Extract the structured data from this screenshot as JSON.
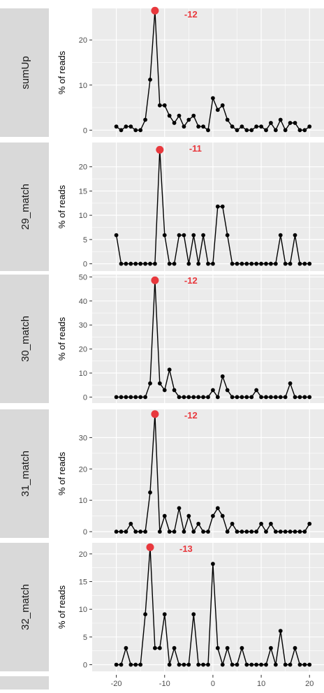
{
  "chart_data": {
    "type": "line",
    "x_ticks": [
      -20,
      -10,
      0,
      10,
      20
    ],
    "xlim": [
      -25,
      23
    ],
    "y_axis_label": "% of reads",
    "colors": {
      "line": "#000000",
      "point": "#000000",
      "peak": "#e8383d",
      "panel_bg": "#ebebeb",
      "strip_bg": "#d9d9d9",
      "grid": "#ffffff"
    },
    "panels": [
      {
        "strip": "sumUp",
        "ylim": [
          -1.5,
          27
        ],
        "y_ticks": [
          0,
          10,
          20
        ],
        "peak": {
          "x": -12,
          "label": "-12"
        },
        "x": [
          -20,
          -19,
          -18,
          -17,
          -16,
          -15,
          -14,
          -13,
          -12,
          -11,
          -10,
          -9,
          -8,
          -7,
          -6,
          -5,
          -4,
          -3,
          -2,
          -1,
          0,
          1,
          2,
          3,
          4,
          5,
          6,
          7,
          8,
          9,
          10,
          11,
          12,
          13,
          14,
          15,
          16,
          17,
          18,
          19,
          20
        ],
        "y": [
          0.8,
          0.0,
          0.8,
          0.8,
          0.0,
          0.0,
          2.3,
          11.2,
          26.5,
          5.5,
          5.5,
          3.2,
          1.6,
          3.2,
          0.8,
          2.3,
          3.2,
          0.8,
          0.8,
          0.0,
          7.1,
          4.5,
          5.5,
          2.3,
          0.8,
          0.0,
          0.8,
          0.0,
          0.0,
          0.8,
          0.8,
          0.0,
          1.6,
          0.0,
          2.3,
          0.0,
          1.6,
          1.6,
          0.0,
          0.0,
          0.8
        ]
      },
      {
        "strip": "29_match",
        "ylim": [
          -1.5,
          25
        ],
        "y_ticks": [
          0,
          5,
          10,
          15,
          20
        ],
        "peak": {
          "x": -11,
          "label": "-11"
        },
        "x": [
          -20,
          -19,
          -18,
          -17,
          -16,
          -15,
          -14,
          -13,
          -12,
          -11,
          -10,
          -9,
          -8,
          -7,
          -6,
          -5,
          -4,
          -3,
          -2,
          -1,
          0,
          1,
          2,
          3,
          4,
          5,
          6,
          7,
          8,
          9,
          10,
          11,
          12,
          13,
          14,
          15,
          16,
          17,
          18,
          19,
          20
        ],
        "y": [
          5.9,
          0.0,
          0.0,
          0.0,
          0.0,
          0.0,
          0.0,
          0.0,
          0.0,
          23.5,
          5.9,
          0.0,
          0.0,
          5.9,
          5.9,
          0.0,
          5.9,
          0.0,
          5.9,
          0.0,
          0.0,
          11.8,
          11.8,
          5.9,
          0.0,
          0.0,
          0.0,
          0.0,
          0.0,
          0.0,
          0.0,
          0.0,
          0.0,
          0.0,
          5.9,
          0.0,
          0.0,
          5.9,
          0.0,
          0.0,
          0.0
        ]
      },
      {
        "strip": "30_match",
        "ylim": [
          -2.5,
          51
        ],
        "y_ticks": [
          0,
          10,
          20,
          30,
          40,
          50
        ],
        "peak": {
          "x": -12,
          "label": "-12"
        },
        "x": [
          -20,
          -19,
          -18,
          -17,
          -16,
          -15,
          -14,
          -13,
          -12,
          -11,
          -10,
          -9,
          -8,
          -7,
          -6,
          -5,
          -4,
          -3,
          -2,
          -1,
          0,
          1,
          2,
          3,
          4,
          5,
          6,
          7,
          8,
          9,
          10,
          11,
          12,
          13,
          14,
          15,
          16,
          17,
          18,
          19,
          20
        ],
        "y": [
          0.0,
          0.0,
          0.0,
          0.0,
          0.0,
          0.0,
          0.0,
          5.7,
          48.6,
          5.7,
          2.9,
          11.4,
          2.9,
          0.0,
          0.0,
          0.0,
          0.0,
          0.0,
          0.0,
          0.0,
          2.9,
          0.0,
          8.6,
          2.9,
          0.0,
          0.0,
          0.0,
          0.0,
          0.0,
          2.9,
          0.0,
          0.0,
          0.0,
          0.0,
          0.0,
          0.0,
          5.7,
          0.0,
          0.0,
          0.0,
          0.0
        ]
      },
      {
        "strip": "31_match",
        "ylim": [
          -2,
          39
        ],
        "y_ticks": [
          0,
          10,
          20,
          30
        ],
        "peak": {
          "x": -12,
          "label": "-12"
        },
        "x": [
          -20,
          -19,
          -18,
          -17,
          -16,
          -15,
          -14,
          -13,
          -12,
          -11,
          -10,
          -9,
          -8,
          -7,
          -6,
          -5,
          -4,
          -3,
          -2,
          -1,
          0,
          1,
          2,
          3,
          4,
          5,
          6,
          7,
          8,
          9,
          10,
          11,
          12,
          13,
          14,
          15,
          16,
          17,
          18,
          19,
          20
        ],
        "y": [
          0.0,
          0.0,
          0.0,
          2.5,
          0.0,
          0.0,
          0.0,
          12.5,
          37.5,
          0.0,
          5.0,
          0.0,
          0.0,
          7.5,
          0.0,
          5.0,
          0.0,
          2.5,
          0.0,
          0.0,
          5.0,
          7.5,
          5.0,
          0.0,
          2.5,
          0.0,
          0.0,
          0.0,
          0.0,
          0.0,
          2.5,
          0.0,
          2.5,
          0.0,
          0.0,
          0.0,
          0.0,
          0.0,
          0.0,
          0.0,
          2.5
        ]
      },
      {
        "strip": "32_match",
        "ylim": [
          -1.2,
          22
        ],
        "y_ticks": [
          0,
          5,
          10,
          15,
          20
        ],
        "peak": {
          "x": -13,
          "label": "-13"
        },
        "x": [
          -20,
          -19,
          -18,
          -17,
          -16,
          -15,
          -14,
          -13,
          -12,
          -11,
          -10,
          -9,
          -8,
          -7,
          -6,
          -5,
          -4,
          -3,
          -2,
          -1,
          0,
          1,
          2,
          3,
          4,
          5,
          6,
          7,
          8,
          9,
          10,
          11,
          12,
          13,
          14,
          15,
          16,
          17,
          18,
          19,
          20
        ],
        "y": [
          0.0,
          0.0,
          3.0,
          0.0,
          0.0,
          0.0,
          9.1,
          21.2,
          3.0,
          3.0,
          9.1,
          0.0,
          3.0,
          0.0,
          0.0,
          0.0,
          9.1,
          0.0,
          0.0,
          0.0,
          18.2,
          3.0,
          0.0,
          3.0,
          0.0,
          0.0,
          3.0,
          0.0,
          0.0,
          0.0,
          0.0,
          0.0,
          3.0,
          0.0,
          6.1,
          0.0,
          0.0,
          3.0,
          0.0,
          0.0,
          0.0
        ]
      }
    ]
  }
}
